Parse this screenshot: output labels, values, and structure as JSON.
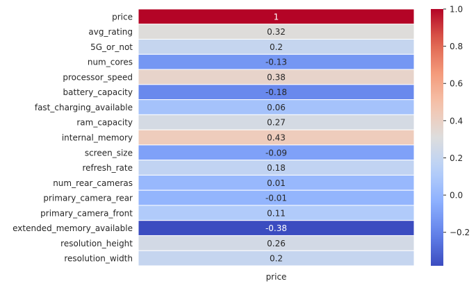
{
  "chart_data": {
    "type": "heatmap",
    "columns": [
      "price"
    ],
    "rows": [
      "price",
      "avg_rating",
      "5G_or_not",
      "num_cores",
      "processor_speed",
      "battery_capacity",
      "fast_charging_available",
      "ram_capacity",
      "internal_memory",
      "screen_size",
      "refresh_rate",
      "num_rear_cameras",
      "primary_camera_rear",
      "primary_camera_front",
      "extended_memory_available",
      "resolution_height",
      "resolution_width"
    ],
    "values": [
      1,
      0.32,
      0.2,
      -0.13,
      0.38,
      -0.18,
      0.06,
      0.27,
      0.43,
      -0.09,
      0.18,
      0.01,
      -0.01,
      0.11,
      -0.38,
      0.26,
      0.2
    ],
    "value_labels": [
      "1",
      "0.32",
      "0.2",
      "-0.13",
      "0.38",
      "-0.18",
      "0.06",
      "0.27",
      "0.43",
      "-0.09",
      "0.18",
      "0.01",
      "-0.01",
      "0.11",
      "-0.38",
      "0.26",
      "0.2"
    ],
    "colormap": "coolwarm",
    "vmin": -0.38,
    "vmax": 1.0,
    "colorbar": {
      "ticks": [
        1.0,
        0.8,
        0.6,
        0.4,
        0.2,
        0.0,
        -0.2
      ],
      "tick_labels": [
        "1.0",
        "0.8",
        "0.6",
        "0.4",
        "0.2",
        "0.0",
        "−0.2"
      ]
    },
    "xlabel": "",
    "ylabel": "",
    "title": ""
  }
}
